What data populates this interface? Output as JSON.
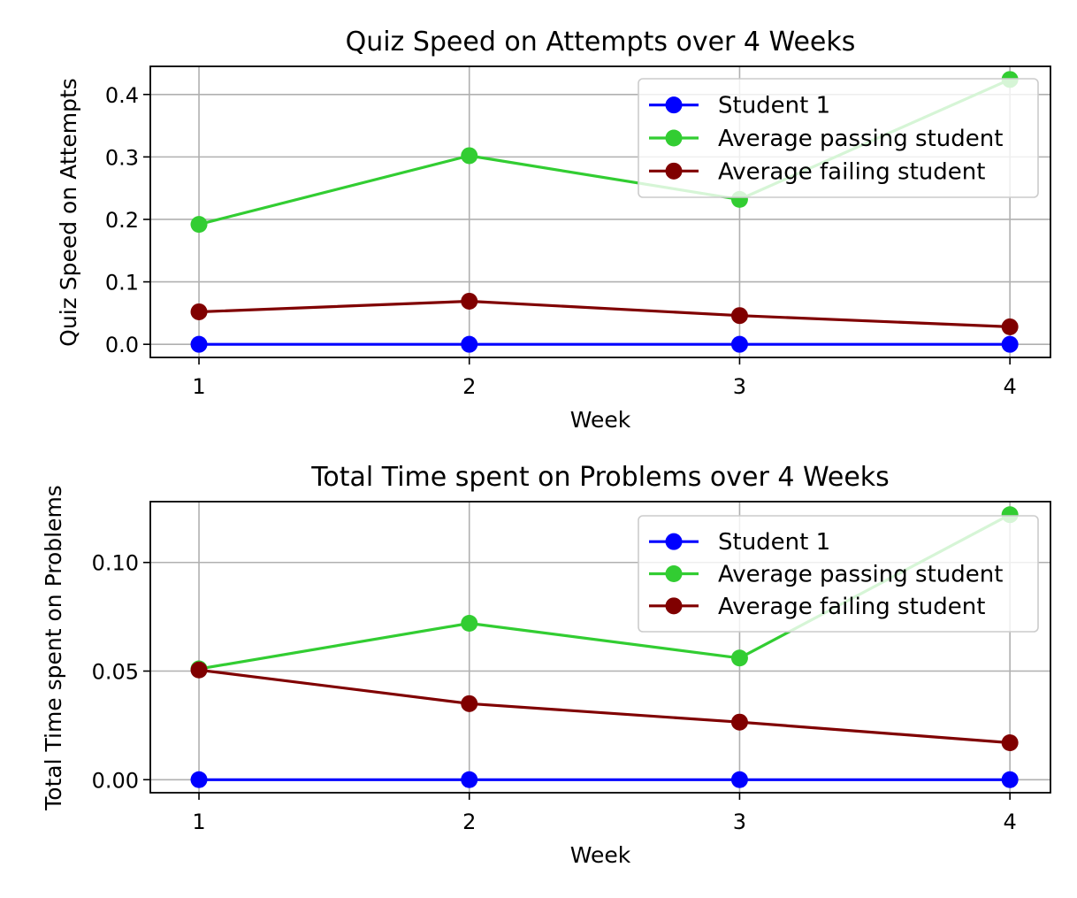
{
  "chart_data": [
    {
      "type": "line",
      "title": "Quiz Speed on Attempts over 4 Weeks",
      "xlabel": "Week",
      "ylabel": "Quiz Speed on Attempts",
      "x": [
        1,
        2,
        3,
        4
      ],
      "xlim": [
        0.82,
        4.15
      ],
      "ylim": [
        -0.021,
        0.445
      ],
      "yticks": [
        0.0,
        0.1,
        0.2,
        0.3,
        0.4
      ],
      "ytick_labels": [
        "0.0",
        "0.1",
        "0.2",
        "0.3",
        "0.4"
      ],
      "grid": true,
      "legend": "top-right",
      "series": [
        {
          "name": "Student 1",
          "color": "#0000ff",
          "values": [
            0.0,
            0.0,
            0.0,
            0.0
          ]
        },
        {
          "name": "Average passing student",
          "color": "#32cd32",
          "values": [
            0.192,
            0.302,
            0.232,
            0.424
          ]
        },
        {
          "name": "Average failing student",
          "color": "#800000",
          "values": [
            0.052,
            0.069,
            0.046,
            0.028
          ]
        }
      ]
    },
    {
      "type": "line",
      "title": "Total Time spent on Problems over 4 Weeks",
      "xlabel": "Week",
      "ylabel": "Total Time spent on Problems",
      "x": [
        1,
        2,
        3,
        4
      ],
      "xlim": [
        0.82,
        4.15
      ],
      "ylim": [
        -0.006,
        0.128
      ],
      "yticks": [
        0.0,
        0.05,
        0.1
      ],
      "ytick_labels": [
        "0.00",
        "0.05",
        "0.10"
      ],
      "grid": true,
      "legend": "top-right",
      "series": [
        {
          "name": "Student 1",
          "color": "#0000ff",
          "values": [
            0.0,
            0.0,
            0.0,
            0.0
          ]
        },
        {
          "name": "Average passing student",
          "color": "#32cd32",
          "values": [
            0.051,
            0.072,
            0.056,
            0.122
          ]
        },
        {
          "name": "Average failing student",
          "color": "#800000",
          "values": [
            0.0505,
            0.035,
            0.0265,
            0.017
          ]
        }
      ]
    }
  ]
}
